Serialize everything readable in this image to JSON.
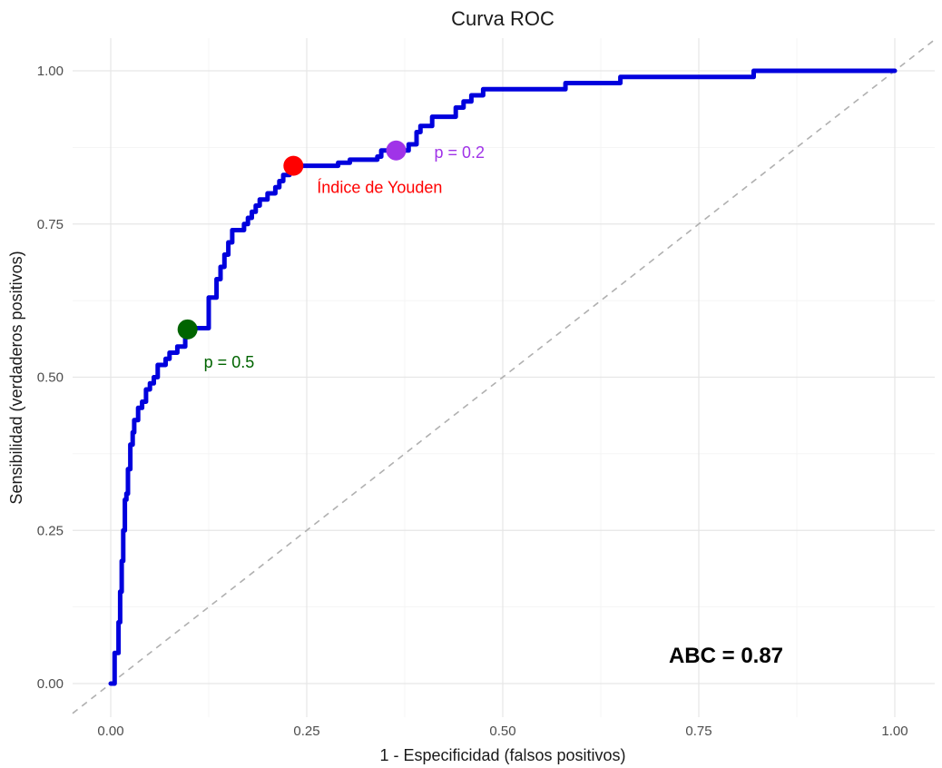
{
  "chart_data": {
    "type": "line",
    "title": "Curva ROC",
    "xlabel": "1 - Especificidad (falsos positivos)",
    "ylabel": "Sensibilidad (verdaderos positivos)",
    "xlim": [
      0,
      1
    ],
    "ylim": [
      0,
      1
    ],
    "x_ticks": [
      0,
      0.25,
      0.5,
      0.75,
      1
    ],
    "y_ticks": [
      0,
      0.25,
      0.5,
      0.75,
      1
    ],
    "x_tick_labels": [
      "0.00",
      "0.25",
      "0.50",
      "0.75",
      "1.00"
    ],
    "y_tick_labels": [
      "0.00",
      "0.25",
      "0.50",
      "0.75",
      "1.00"
    ],
    "grid": true,
    "series": [
      {
        "color": "#0000dd",
        "x": [
          0,
          0.005,
          0.005,
          0.01,
          0.01,
          0.012,
          0.012,
          0.014,
          0.014,
          0.016,
          0.016,
          0.018,
          0.018,
          0.02,
          0.02,
          0.022,
          0.022,
          0.025,
          0.025,
          0.028,
          0.028,
          0.03,
          0.03,
          0.035,
          0.035,
          0.04,
          0.04,
          0.045,
          0.045,
          0.05,
          0.05,
          0.055,
          0.055,
          0.06,
          0.06,
          0.065,
          0.065,
          0.07,
          0.07,
          0.075,
          0.075,
          0.085,
          0.085,
          0.095,
          0.095,
          0.1,
          0.1,
          0.11,
          0.11,
          0.125,
          0.125,
          0.13,
          0.13,
          0.135,
          0.135,
          0.14,
          0.14,
          0.145,
          0.145,
          0.15,
          0.15,
          0.155,
          0.155,
          0.165,
          0.165,
          0.17,
          0.17,
          0.175,
          0.175,
          0.18,
          0.18,
          0.185,
          0.185,
          0.19,
          0.19,
          0.195,
          0.195,
          0.2,
          0.2,
          0.21,
          0.21,
          0.215,
          0.215,
          0.22,
          0.22,
          0.228,
          0.228,
          0.235,
          0.235,
          0.29,
          0.29,
          0.305,
          0.305,
          0.34,
          0.34,
          0.345,
          0.345,
          0.36,
          0.36,
          0.38,
          0.38,
          0.39,
          0.39,
          0.395,
          0.395,
          0.41,
          0.41,
          0.42,
          0.42,
          0.44,
          0.44,
          0.45,
          0.45,
          0.46,
          0.46,
          0.465,
          0.465,
          0.475,
          0.475,
          0.56,
          0.56,
          0.58,
          0.58,
          0.65,
          0.65,
          0.82,
          0.82,
          1.0
        ],
        "y": [
          0,
          0,
          0.05,
          0.05,
          0.1,
          0.1,
          0.15,
          0.15,
          0.2,
          0.2,
          0.25,
          0.25,
          0.3,
          0.3,
          0.31,
          0.31,
          0.35,
          0.35,
          0.39,
          0.39,
          0.41,
          0.41,
          0.43,
          0.43,
          0.45,
          0.45,
          0.46,
          0.46,
          0.48,
          0.48,
          0.49,
          0.49,
          0.5,
          0.5,
          0.52,
          0.52,
          0.52,
          0.52,
          0.53,
          0.53,
          0.54,
          0.54,
          0.55,
          0.55,
          0.57,
          0.57,
          0.58,
          0.58,
          0.58,
          0.58,
          0.63,
          0.63,
          0.63,
          0.63,
          0.66,
          0.66,
          0.68,
          0.68,
          0.7,
          0.7,
          0.72,
          0.72,
          0.74,
          0.74,
          0.74,
          0.74,
          0.75,
          0.75,
          0.76,
          0.76,
          0.77,
          0.77,
          0.78,
          0.78,
          0.79,
          0.79,
          0.79,
          0.79,
          0.8,
          0.8,
          0.81,
          0.81,
          0.82,
          0.82,
          0.83,
          0.83,
          0.84,
          0.84,
          0.845,
          0.845,
          0.85,
          0.85,
          0.855,
          0.855,
          0.86,
          0.86,
          0.87,
          0.87,
          0.87,
          0.87,
          0.88,
          0.88,
          0.9,
          0.9,
          0.91,
          0.91,
          0.925,
          0.925,
          0.925,
          0.925,
          0.94,
          0.94,
          0.95,
          0.95,
          0.96,
          0.96,
          0.96,
          0.96,
          0.97,
          0.97,
          0.97,
          0.97,
          0.98,
          0.98,
          0.99,
          0.99,
          1.0,
          1.0
        ]
      }
    ],
    "reference_line": {
      "x": [
        0,
        1
      ],
      "y": [
        0,
        1
      ],
      "style": "dashed",
      "color": "#b0b0b0"
    },
    "points": [
      {
        "x": 0.098,
        "y": 0.578,
        "color": "#006400",
        "label": "p = 0.5"
      },
      {
        "x": 0.233,
        "y": 0.845,
        "color": "#ff0000",
        "label": "Índice de Youden"
      },
      {
        "x": 0.364,
        "y": 0.87,
        "color": "#a033e8",
        "label": "p = 0.2"
      }
    ],
    "annotation": "ABC = 0.87"
  }
}
